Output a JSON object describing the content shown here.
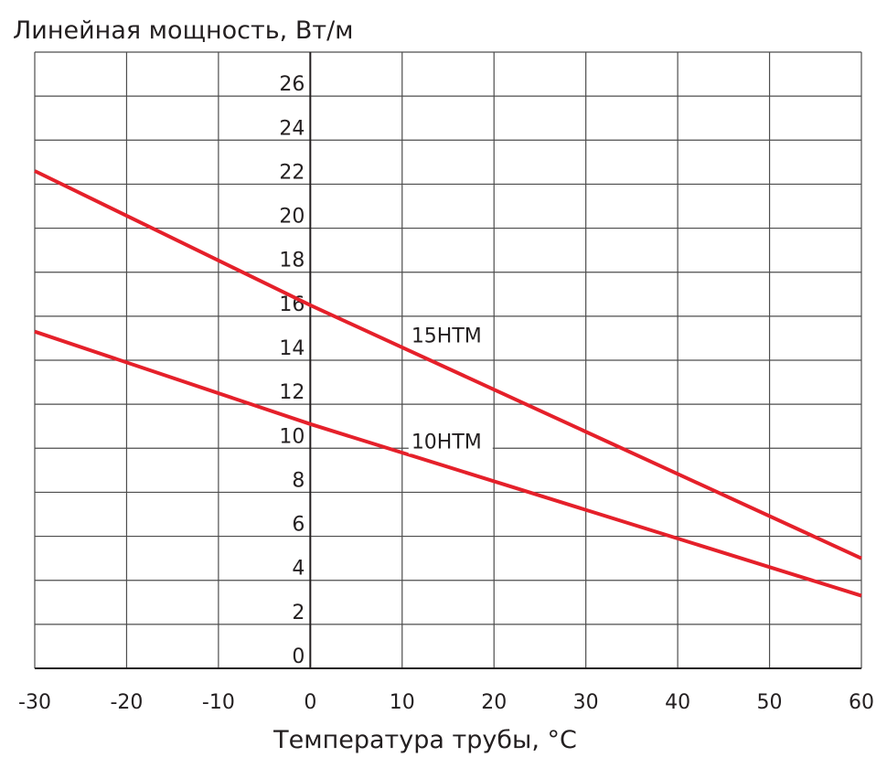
{
  "chart_data": {
    "type": "line",
    "title": "",
    "ylabel": "Линейная мощность, Вт/м",
    "xlabel": "Температура трубы, °C",
    "xlim": [
      -30,
      60
    ],
    "ylim": [
      0,
      28
    ],
    "x_ticks": [
      -30,
      -20,
      -10,
      0,
      10,
      20,
      30,
      40,
      50,
      60
    ],
    "x_tick_labels": [
      "-30",
      "-20",
      "-10",
      "0",
      "10",
      "20",
      "30",
      "40",
      "50",
      "60"
    ],
    "y_ticks": [
      0,
      2,
      4,
      6,
      8,
      10,
      12,
      14,
      16,
      18,
      20,
      22,
      24,
      26
    ],
    "y_tick_labels": [
      "0",
      "2",
      "4",
      "6",
      "8",
      "10",
      "12",
      "14",
      "16",
      "18",
      "20",
      "22",
      "24",
      "26"
    ],
    "grid": true,
    "series": [
      {
        "name": "15НТМ",
        "color": "#e5202a",
        "x": [
          -30,
          0,
          60
        ],
        "y": [
          22.6,
          16.5,
          5.0
        ]
      },
      {
        "name": "10НТМ",
        "color": "#e5202a",
        "x": [
          -30,
          0,
          60
        ],
        "y": [
          15.3,
          11.1,
          3.3
        ]
      }
    ]
  }
}
